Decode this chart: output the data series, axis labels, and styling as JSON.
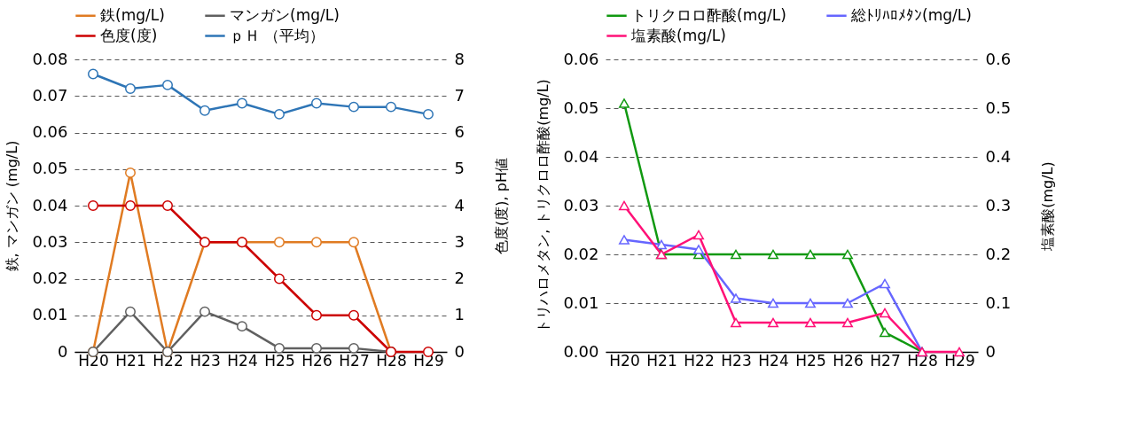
{
  "chart_data": [
    {
      "type": "line",
      "categories": [
        "H20",
        "H21",
        "H22",
        "H23",
        "H24",
        "H25",
        "H26",
        "H27",
        "H28",
        "H29"
      ],
      "ylabel": "鉄, マンガン (mg/L)",
      "y2label": "色度(度), pH値",
      "ylim": [
        0,
        0.08
      ],
      "yticks": [
        0,
        0.01,
        0.02,
        0.03,
        0.04,
        0.05,
        0.06,
        0.07,
        0.08
      ],
      "y2lim": [
        0,
        8
      ],
      "y2ticks": [
        0,
        1,
        2,
        3,
        4,
        5,
        6,
        7,
        8
      ],
      "grid": "y",
      "legend": "top",
      "marker": "circle",
      "line_style": "solid",
      "series": [
        {
          "name": "鉄(mg/L)",
          "color": "#e07b22",
          "values": [
            0,
            0.049,
            0,
            0.03,
            0.03,
            0.03,
            0.03,
            0.03,
            0,
            null
          ]
        },
        {
          "name": "マンガン(mg/L)",
          "color": "#606060",
          "values": [
            0,
            0.011,
            0,
            0.011,
            0.007,
            0.001,
            0.001,
            0.001,
            0,
            null
          ]
        },
        {
          "name": "色度(度)",
          "color": "#cc0000",
          "axis": "y2",
          "values": [
            4,
            4,
            4,
            3,
            3,
            2,
            1,
            1,
            0,
            0
          ]
        },
        {
          "name": "ｐＨ （平均）",
          "color": "#2e75b6",
          "axis": "y2",
          "values": [
            7.6,
            7.2,
            7.3,
            6.6,
            6.8,
            6.5,
            6.8,
            6.7,
            6.7,
            6.5
          ]
        }
      ]
    },
    {
      "type": "line",
      "categories": [
        "H20",
        "H21",
        "H22",
        "H23",
        "H24",
        "H25",
        "H26",
        "H27",
        "H28",
        "H29"
      ],
      "ylabel": "トリハロメタン, トリクロロ酢酸(mg/L)",
      "y2label": "塩素酸(mg/L)",
      "ylim": [
        0,
        0.06
      ],
      "yticks": [
        {
          "value": 0,
          "label": "0.00"
        },
        0.01,
        0.02,
        0.03,
        0.04,
        0.05,
        0.06
      ],
      "y2lim": [
        0,
        0.6
      ],
      "y2ticks": [
        0,
        0.1,
        0.2,
        0.3,
        0.4,
        0.5,
        0.6
      ],
      "grid": "y",
      "legend": "top",
      "marker": "triangle",
      "line_style": "solid",
      "series": [
        {
          "name": "トリクロロ酢酸(mg/L)",
          "color": "#119911",
          "values": [
            0.051,
            0.02,
            0.02,
            0.02,
            0.02,
            0.02,
            0.02,
            0.004,
            0,
            null
          ]
        },
        {
          "name": "総ﾄﾘﾊﾛﾒﾀﾝ(mg/L)",
          "color": "#6666ff",
          "values": [
            0.023,
            0.022,
            0.021,
            0.011,
            0.01,
            0.01,
            0.01,
            0.014,
            0,
            null
          ]
        },
        {
          "name": "塩素酸(mg/L)",
          "color": "#ff1177",
          "axis": "y2",
          "values": [
            0.3,
            0.2,
            0.24,
            0.06,
            0.06,
            0.06,
            0.06,
            0.08,
            0,
            0
          ]
        }
      ]
    }
  ]
}
